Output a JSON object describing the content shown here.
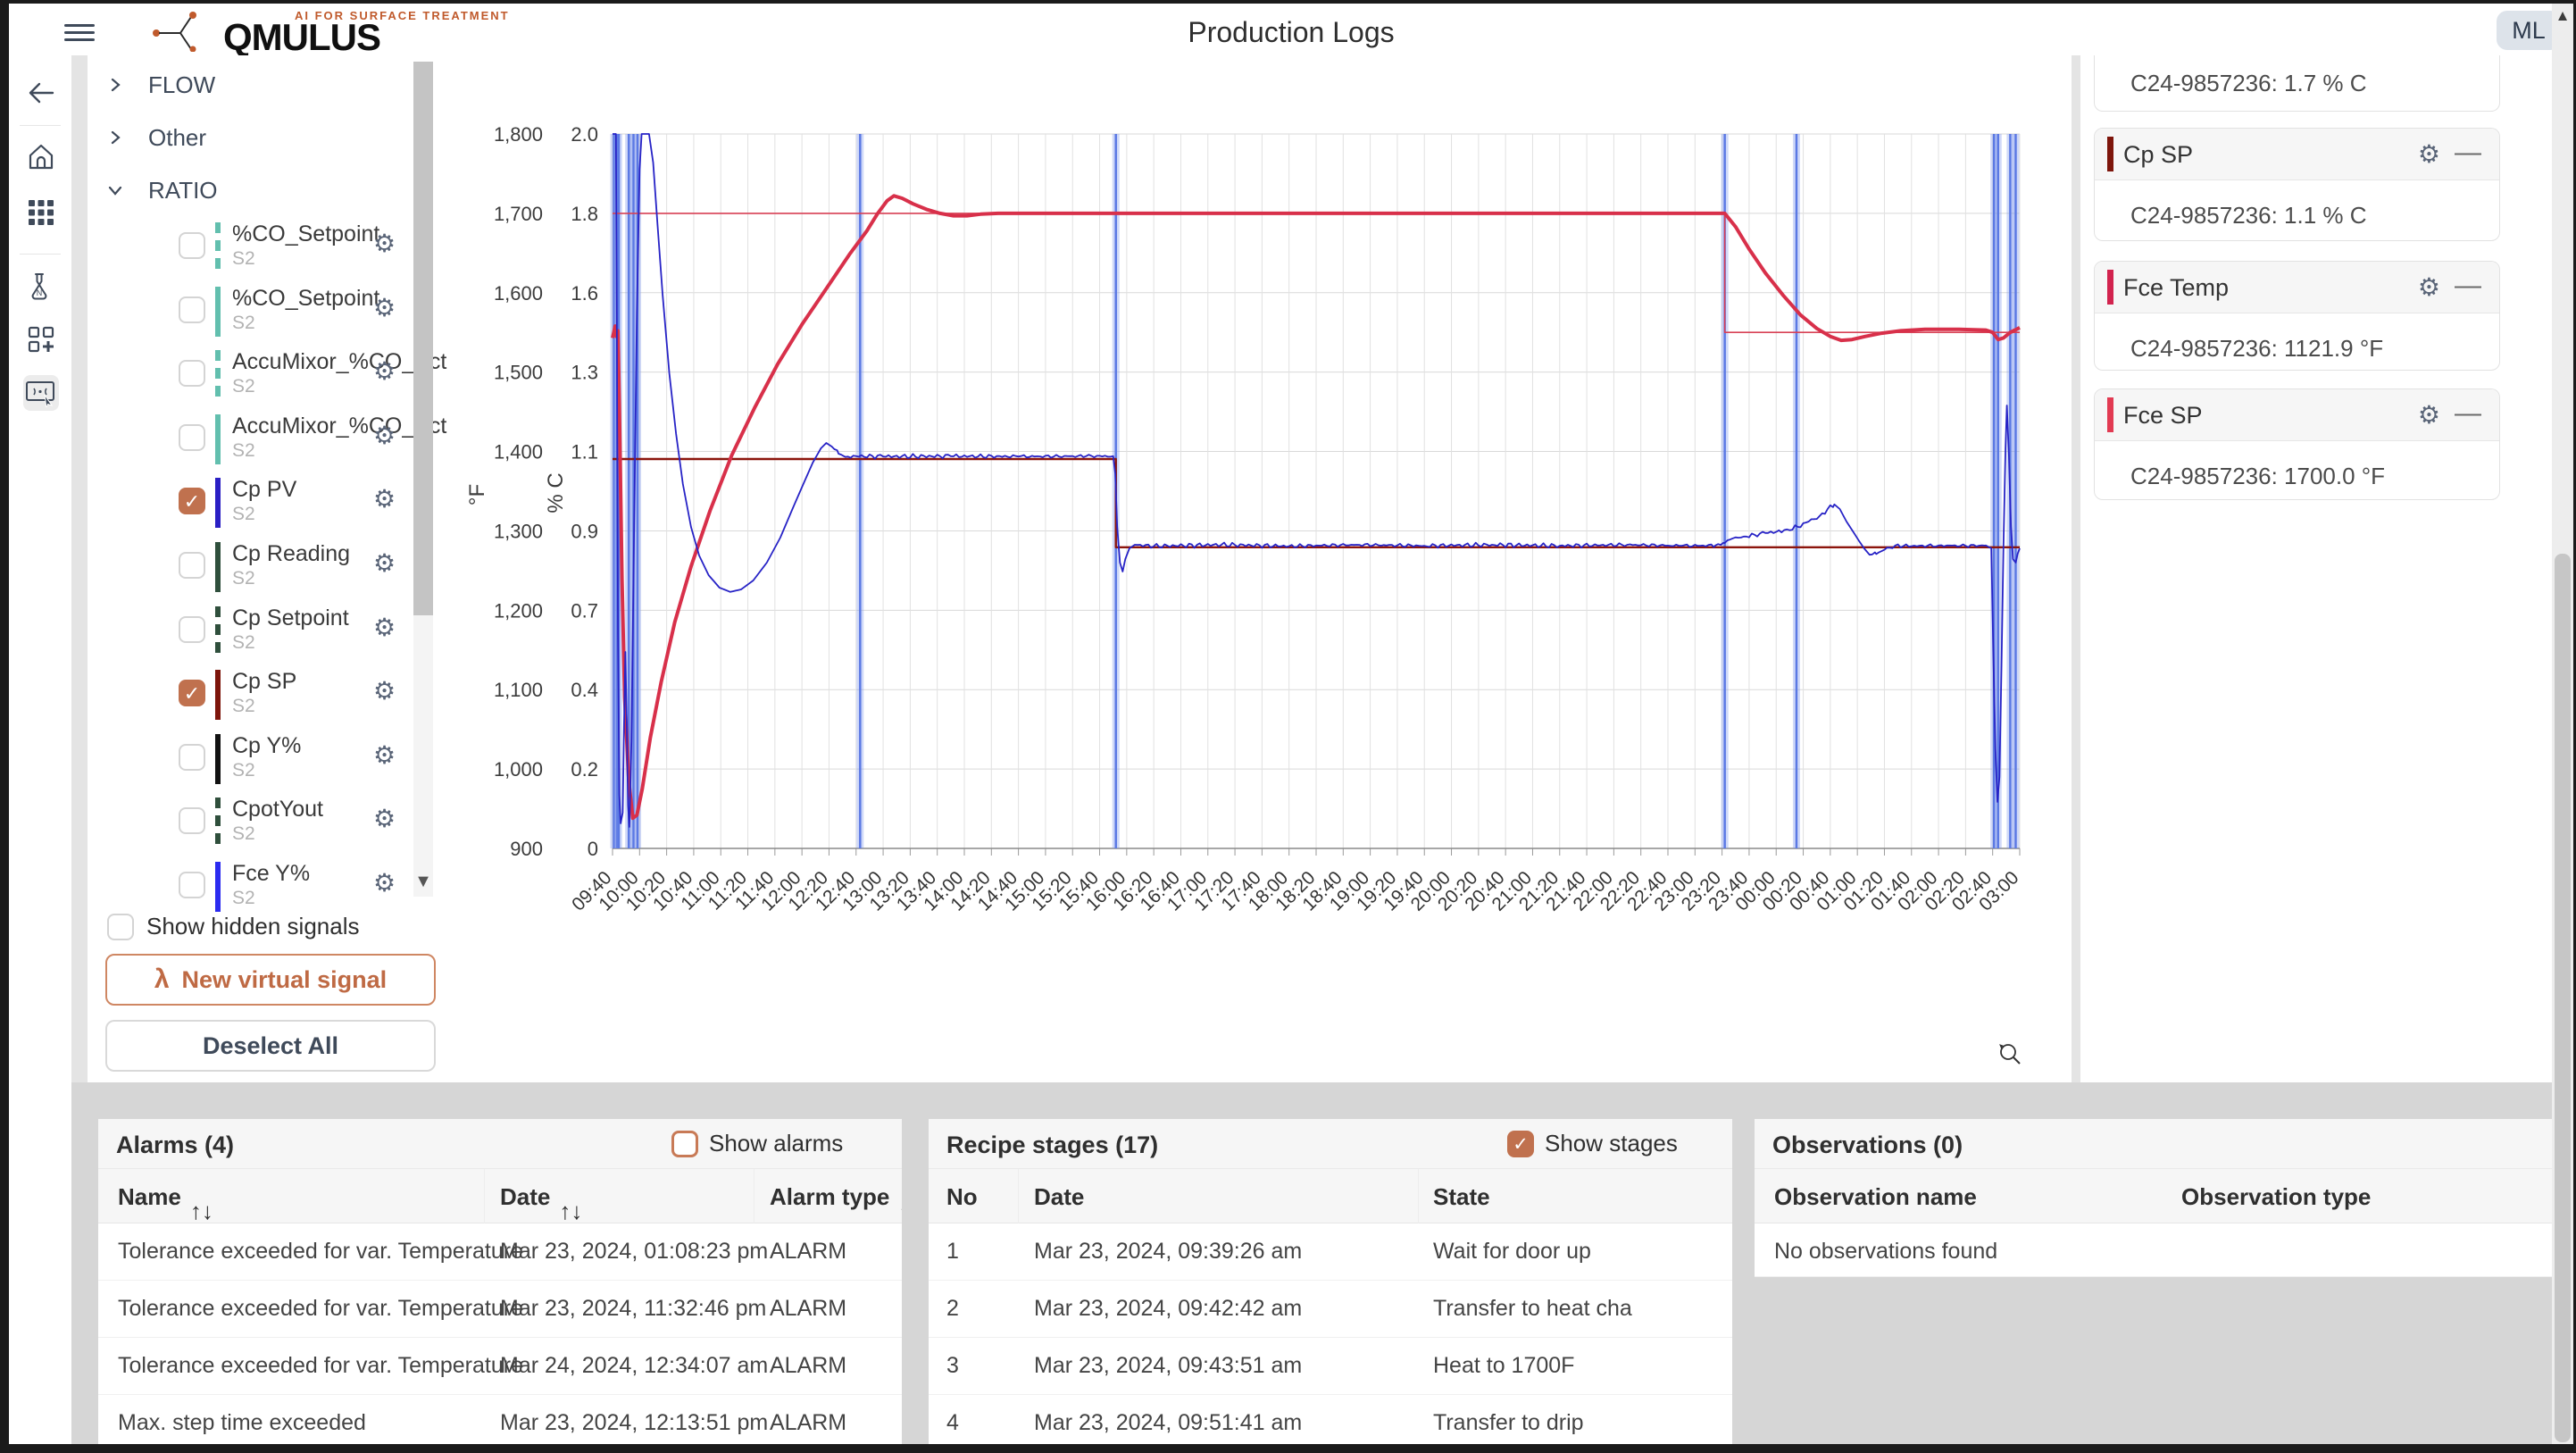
{
  "top_bar": {
    "tagline": "AI FOR SURFACE TREATMENT",
    "brand": "QMULUS",
    "title": "Production Logs",
    "avatar": "ML"
  },
  "colors": {
    "accent": "#bf6a44",
    "checkbox_on": "#c0714e",
    "stage_line": "#5b79e4",
    "grid": "#d9d9d9"
  },
  "sidebar": {
    "items": [
      "back",
      "home",
      "apps",
      "lab",
      "add-widget",
      "remote-control",
      "help"
    ]
  },
  "signal_panel": {
    "groups": [
      {
        "label": "FLOW",
        "expanded": false
      },
      {
        "label": "Other",
        "expanded": false
      },
      {
        "label": "RATIO",
        "expanded": true
      }
    ],
    "signals": [
      {
        "name": "%CO_Setpoint",
        "sub": "S2",
        "color": "#62bfae",
        "dashed": true,
        "checked": false
      },
      {
        "name": "%CO_Setpoint",
        "sub": "S2",
        "color": "#62bfae",
        "dashed": false,
        "checked": false
      },
      {
        "name": "AccuMixor_%CO_Act",
        "sub": "S2",
        "color": "#62bfae",
        "dashed": true,
        "checked": false
      },
      {
        "name": "AccuMixor_%CO_Act",
        "sub": "S2",
        "color": "#62bfae",
        "dashed": false,
        "checked": false
      },
      {
        "name": "Cp PV",
        "sub": "S2",
        "color": "#2a1fc4",
        "dashed": false,
        "checked": true
      },
      {
        "name": "Cp Reading",
        "sub": "S2",
        "color": "#2f4f3c",
        "dashed": false,
        "checked": false
      },
      {
        "name": "Cp Setpoint",
        "sub": "S2",
        "color": "#2f4f3c",
        "dashed": true,
        "checked": false
      },
      {
        "name": "Cp SP",
        "sub": "S2",
        "color": "#7d150b",
        "dashed": false,
        "checked": true
      },
      {
        "name": "Cp Y%",
        "sub": "S2",
        "color": "#111111",
        "dashed": false,
        "checked": false
      },
      {
        "name": "CpotYout",
        "sub": "S2",
        "color": "#2f4f3c",
        "dashed": true,
        "checked": false
      },
      {
        "name": "Fce Y%",
        "sub": "S2",
        "color": "#2b2bf0",
        "dashed": false,
        "checked": false
      }
    ],
    "show_hidden_label": "Show hidden signals",
    "show_hidden_checked": false,
    "new_virtual_label": "New virtual signal",
    "deselect_label": "Deselect All"
  },
  "chart_data": {
    "type": "line",
    "title": "",
    "grid": true,
    "x_ticks": [
      "09:40",
      "10:00",
      "10:20",
      "10:40",
      "11:00",
      "11:20",
      "11:40",
      "12:00",
      "12:20",
      "12:40",
      "13:00",
      "13:20",
      "13:40",
      "14:00",
      "14:20",
      "14:40",
      "15:00",
      "15:20",
      "15:40",
      "16:00",
      "16:20",
      "16:40",
      "17:00",
      "17:20",
      "17:40",
      "18:00",
      "18:20",
      "18:40",
      "19:00",
      "19:20",
      "19:40",
      "20:00",
      "20:20",
      "20:40",
      "21:00",
      "21:20",
      "21:40",
      "22:00",
      "22:20",
      "22:40",
      "23:00",
      "23:20",
      "23:40",
      "00:00",
      "00:20",
      "00:40",
      "01:00",
      "01:20",
      "01:40",
      "02:00",
      "02:20",
      "02:40",
      "03:00"
    ],
    "x_range_minutes": [
      0,
      1040
    ],
    "y_left": {
      "label": "°F",
      "min": 900,
      "max": 1800,
      "ticks": [
        "900",
        "1,000",
        "1,100",
        "1,200",
        "1,300",
        "1,400",
        "1,500",
        "1,600",
        "1,700",
        "1,800"
      ]
    },
    "y_right": {
      "label": "% C",
      "min": 0,
      "max": 2,
      "ticks": [
        "0",
        "0.2",
        "0.4",
        "0.7",
        "0.9",
        "1.1",
        "1.3",
        "1.6",
        "1.8",
        "2.0"
      ]
    },
    "stage_lines_minutes": [
      1,
      3.3,
      4.5,
      12,
      15.5,
      18.5,
      183,
      372,
      822,
      875,
      1021,
      1024,
      1033,
      1037
    ],
    "series": [
      {
        "name": "Fce SP",
        "axis": "left",
        "color": "#d84055",
        "width": 1.6,
        "noise": 0,
        "points": [
          [
            0,
            1700
          ],
          [
            822,
            1700
          ],
          [
            822,
            1550
          ],
          [
            1040,
            1550
          ]
        ]
      },
      {
        "name": "Cp SP",
        "axis": "right",
        "color": "#8c150c",
        "width": 2.4,
        "noise": 0,
        "points": [
          [
            0,
            1.09
          ],
          [
            372,
            1.09
          ],
          [
            372,
            0.843
          ],
          [
            1040,
            0.843
          ]
        ]
      },
      {
        "name": "Fce Temp",
        "axis": "left",
        "color": "#d8304a",
        "width": 4,
        "noise": 0,
        "points": [
          [
            0,
            1543
          ],
          [
            2,
            1558
          ],
          [
            3,
            1545
          ],
          [
            4,
            1552
          ],
          [
            5,
            1460
          ],
          [
            7,
            1240
          ],
          [
            9,
            1090
          ],
          [
            12,
            985
          ],
          [
            15,
            938
          ],
          [
            18,
            942
          ],
          [
            22,
            975
          ],
          [
            28,
            1040
          ],
          [
            36,
            1110
          ],
          [
            46,
            1185
          ],
          [
            58,
            1255
          ],
          [
            72,
            1325
          ],
          [
            88,
            1395
          ],
          [
            105,
            1455
          ],
          [
            122,
            1510
          ],
          [
            140,
            1560
          ],
          [
            158,
            1605
          ],
          [
            175,
            1648
          ],
          [
            188,
            1678
          ],
          [
            196,
            1700
          ],
          [
            203,
            1716
          ],
          [
            208,
            1722
          ],
          [
            214,
            1719
          ],
          [
            222,
            1712
          ],
          [
            232,
            1705
          ],
          [
            242,
            1700
          ],
          [
            252,
            1697
          ],
          [
            262,
            1697
          ],
          [
            272,
            1699
          ],
          [
            285,
            1700
          ],
          [
            500,
            1700
          ],
          [
            822,
            1700
          ],
          [
            830,
            1683
          ],
          [
            840,
            1655
          ],
          [
            852,
            1625
          ],
          [
            865,
            1597
          ],
          [
            878,
            1572
          ],
          [
            890,
            1555
          ],
          [
            900,
            1545
          ],
          [
            908,
            1540
          ],
          [
            916,
            1541
          ],
          [
            926,
            1545
          ],
          [
            938,
            1549
          ],
          [
            952,
            1552
          ],
          [
            970,
            1554
          ],
          [
            995,
            1554
          ],
          [
            1015,
            1553
          ],
          [
            1020,
            1550
          ],
          [
            1024,
            1541
          ],
          [
            1028,
            1543
          ],
          [
            1033,
            1550
          ],
          [
            1040,
            1556
          ]
        ]
      },
      {
        "name": "Cp PV",
        "axis": "right",
        "color": "#2723c6",
        "width": 1.8,
        "noise": 0.007,
        "points": [
          [
            0,
            2.0
          ],
          [
            2.5,
            2.0
          ],
          [
            3.2,
            1.5
          ],
          [
            4,
            0.6
          ],
          [
            5,
            0.15
          ],
          [
            6,
            0.07
          ],
          [
            7.5,
            0.1
          ],
          [
            8.5,
            0.35
          ],
          [
            9.5,
            0.55
          ],
          [
            10.5,
            0.35
          ],
          [
            11.5,
            0.12
          ],
          [
            12.5,
            0.06
          ],
          [
            14,
            0.3
          ],
          [
            16,
            0.9
          ],
          [
            18,
            1.5
          ],
          [
            20,
            1.9
          ],
          [
            21.5,
            2.0
          ],
          [
            27,
            2.0
          ],
          [
            30,
            1.92
          ],
          [
            33,
            1.76
          ],
          [
            37,
            1.55
          ],
          [
            42,
            1.33
          ],
          [
            47,
            1.16
          ],
          [
            52,
            1.02
          ],
          [
            58,
            0.9
          ],
          [
            64,
            0.82
          ],
          [
            71,
            0.765
          ],
          [
            79,
            0.73
          ],
          [
            87,
            0.718
          ],
          [
            95,
            0.725
          ],
          [
            104,
            0.75
          ],
          [
            114,
            0.8
          ],
          [
            124,
            0.87
          ],
          [
            133,
            0.95
          ],
          [
            141,
            1.02
          ],
          [
            148,
            1.08
          ],
          [
            154,
            1.12
          ],
          [
            158,
            1.135
          ],
          [
            162,
            1.125
          ],
          [
            167,
            1.105
          ],
          [
            172,
            1.096
          ],
          [
            180,
            1.098
          ],
          [
            200,
            1.097
          ],
          [
            250,
            1.098
          ],
          [
            300,
            1.097
          ],
          [
            350,
            1.098
          ],
          [
            370,
            1.098
          ],
          [
            371.5,
            1.05
          ],
          [
            373,
            0.9
          ],
          [
            375,
            0.8
          ],
          [
            377,
            0.775
          ],
          [
            379,
            0.81
          ],
          [
            382,
            0.84
          ],
          [
            386,
            0.85
          ],
          [
            400,
            0.846
          ],
          [
            450,
            0.85
          ],
          [
            500,
            0.846
          ],
          [
            550,
            0.85
          ],
          [
            600,
            0.847
          ],
          [
            650,
            0.85
          ],
          [
            700,
            0.847
          ],
          [
            750,
            0.85
          ],
          [
            790,
            0.847
          ],
          [
            815,
            0.848
          ],
          [
            822,
            0.855
          ],
          [
            828,
            0.868
          ],
          [
            836,
            0.873
          ],
          [
            844,
            0.878
          ],
          [
            852,
            0.883
          ],
          [
            860,
            0.886
          ],
          [
            868,
            0.893
          ],
          [
            876,
            0.9
          ],
          [
            884,
            0.915
          ],
          [
            892,
            0.93
          ],
          [
            898,
            0.95
          ],
          [
            903,
            0.963
          ],
          [
            907,
            0.95
          ],
          [
            912,
            0.915
          ],
          [
            917,
            0.886
          ],
          [
            921,
            0.862
          ],
          [
            925,
            0.84
          ],
          [
            929,
            0.822
          ],
          [
            934,
            0.824
          ],
          [
            940,
            0.836
          ],
          [
            948,
            0.848
          ],
          [
            960,
            0.846
          ],
          [
            980,
            0.848
          ],
          [
            1000,
            0.847
          ],
          [
            1015,
            0.848
          ],
          [
            1019,
            0.84
          ],
          [
            1020.5,
            0.55
          ],
          [
            1022,
            0.28
          ],
          [
            1023.5,
            0.13
          ],
          [
            1025,
            0.2
          ],
          [
            1026.5,
            0.5
          ],
          [
            1028,
            0.85
          ],
          [
            1029.5,
            1.12
          ],
          [
            1030.5,
            1.24
          ],
          [
            1032,
            1.1
          ],
          [
            1033.5,
            0.9
          ],
          [
            1035,
            0.81
          ],
          [
            1037,
            0.8
          ],
          [
            1038.5,
            0.825
          ],
          [
            1040,
            0.84
          ]
        ]
      }
    ]
  },
  "right_panel": {
    "cards": [
      {
        "label": "",
        "value": "C24-9857236: 1.7 % C",
        "color": "",
        "partial": true
      },
      {
        "label": "Cp SP",
        "value": "C24-9857236: 1.1 % C",
        "color": "#7d150b",
        "partial": false
      },
      {
        "label": "Fce Temp",
        "value": "C24-9857236: 1121.9 °F",
        "color": "#d2234e",
        "partial": false
      },
      {
        "label": "Fce SP",
        "value": "C24-9857236: 1700.0 °F",
        "color": "#e23a52",
        "partial": false
      }
    ]
  },
  "bottom": {
    "alarms": {
      "title": "Alarms (4)",
      "toggle_label": "Show alarms",
      "toggle_checked": false,
      "columns": [
        {
          "label": "Name",
          "sortable": true
        },
        {
          "label": "Date",
          "sortable": true
        },
        {
          "label": "Alarm type",
          "sortable": true
        }
      ],
      "rows": [
        [
          "Tolerance exceeded for var. Temperature",
          "Mar 23, 2024, 01:08:23 pm",
          "ALARM"
        ],
        [
          "Tolerance exceeded for var. Temperature",
          "Mar 23, 2024, 11:32:46 pm",
          "ALARM"
        ],
        [
          "Tolerance exceeded for var. Temperature",
          "Mar 24, 2024, 12:34:07 am",
          "ALARM"
        ],
        [
          "Max. step time exceeded",
          "Mar 23, 2024, 12:13:51 pm",
          "ALARM"
        ]
      ]
    },
    "recipe": {
      "title": "Recipe stages (17)",
      "toggle_label": "Show stages",
      "toggle_checked": true,
      "columns": [
        {
          "label": "No",
          "sortable": false
        },
        {
          "label": "Date",
          "sortable": false
        },
        {
          "label": "State",
          "sortable": false
        }
      ],
      "rows": [
        [
          "1",
          "Mar 23, 2024, 09:39:26 am",
          "Wait for door up"
        ],
        [
          "2",
          "Mar 23, 2024, 09:42:42 am",
          "Transfer to heat cha"
        ],
        [
          "3",
          "Mar 23, 2024, 09:43:51 am",
          "Heat to 1700F"
        ],
        [
          "4",
          "Mar 23, 2024, 09:51:41 am",
          "Transfer to drip"
        ]
      ]
    },
    "observations": {
      "title": "Observations (0)",
      "columns": [
        {
          "label": "Observation name",
          "sortable": false
        },
        {
          "label": "Observation type",
          "sortable": false
        }
      ],
      "empty_message": "No observations found"
    }
  }
}
